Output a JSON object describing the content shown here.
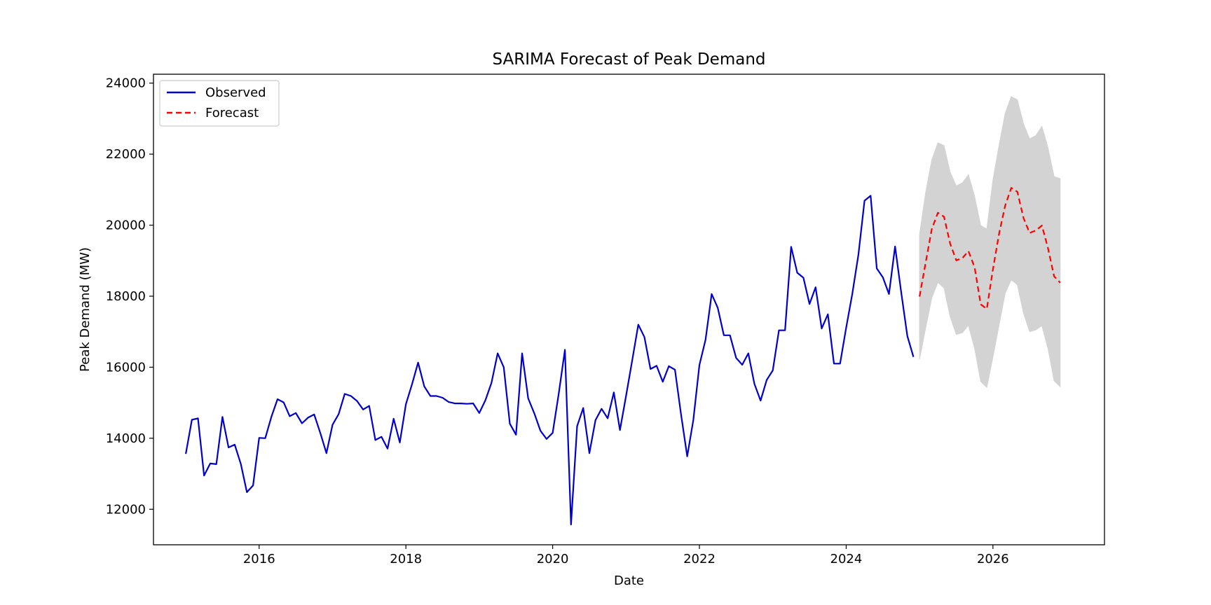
{
  "chart_data": {
    "type": "line",
    "title": "SARIMA Forecast of Peak Demand",
    "xlabel": "Date",
    "ylabel": "Peak Demand (MW)",
    "xlim": [
      2014.56,
      2027.52
    ],
    "ylim": [
      11000,
      24250
    ],
    "x_ticks": [
      2016,
      2018,
      2020,
      2022,
      2024,
      2026
    ],
    "x_tick_labels": [
      "2016",
      "2018",
      "2020",
      "2022",
      "2024",
      "2026"
    ],
    "y_ticks": [
      12000,
      14000,
      16000,
      18000,
      20000,
      22000,
      24000
    ],
    "y_tick_labels": [
      "12000",
      "14000",
      "16000",
      "18000",
      "20000",
      "22000",
      "24000"
    ],
    "x_unit": "months",
    "grid": false,
    "legend_position": "upper-left",
    "series": [
      {
        "name": "Observed",
        "color": "#0000cc",
        "style": "solid",
        "start": "2015-01",
        "values": [
          13560,
          14520,
          14560,
          12950,
          13290,
          13270,
          14600,
          13740,
          13820,
          13280,
          12480,
          12670,
          14010,
          14000,
          14600,
          15100,
          15010,
          14620,
          14710,
          14420,
          14580,
          14670,
          14150,
          13580,
          14380,
          14680,
          15250,
          15190,
          15050,
          14810,
          14910,
          13950,
          14040,
          13710,
          14550,
          13880,
          14960,
          15520,
          16130,
          15460,
          15190,
          15190,
          15140,
          15020,
          14980,
          14980,
          14970,
          14980,
          14710,
          15070,
          15560,
          16390,
          16000,
          14410,
          14100,
          16390,
          15120,
          14700,
          14210,
          13980,
          14150,
          15260,
          16490,
          11570,
          14340,
          14850,
          13580,
          14510,
          14830,
          14560,
          15290,
          14230,
          15190,
          16180,
          17200,
          16850,
          15950,
          16040,
          15590,
          16030,
          15930,
          14670,
          13490,
          14510,
          16060,
          16770,
          18060,
          17670,
          16900,
          16900,
          16260,
          16070,
          16390,
          15530,
          15060,
          15640,
          15910,
          17040,
          17040,
          19390,
          18660,
          18520,
          17780,
          18250,
          17090,
          17490,
          16100,
          16100,
          17110,
          18070,
          19170,
          20690,
          20830,
          18780,
          18530,
          18060,
          19400,
          18100,
          16880,
          16290
        ]
      },
      {
        "name": "Forecast",
        "color": "#ff0000",
        "style": "dashed",
        "start": "2025-01",
        "values": [
          17990,
          18950,
          19890,
          20350,
          20240,
          19480,
          19010,
          19070,
          19270,
          18810,
          17770,
          17640,
          18750,
          19760,
          20550,
          21050,
          20940,
          20200,
          19780,
          19850,
          19990,
          19350,
          18560,
          18380
        ]
      }
    ],
    "confidence_band": {
      "color": "#d3d3d3",
      "start": "2025-01",
      "upper": [
        19740,
        20930,
        21840,
        22320,
        22240,
        21490,
        21110,
        21190,
        21420,
        20810,
        19990,
        19890,
        21270,
        22250,
        23150,
        23620,
        23530,
        22850,
        22430,
        22520,
        22780,
        22180,
        21370,
        21310
      ],
      "lower": [
        16220,
        17110,
        17950,
        18390,
        18230,
        17420,
        16920,
        16970,
        17180,
        16530,
        15600,
        15430,
        16280,
        17190,
        18080,
        18460,
        18320,
        17520,
        17000,
        17050,
        17170,
        16520,
        15620,
        15450
      ]
    }
  }
}
